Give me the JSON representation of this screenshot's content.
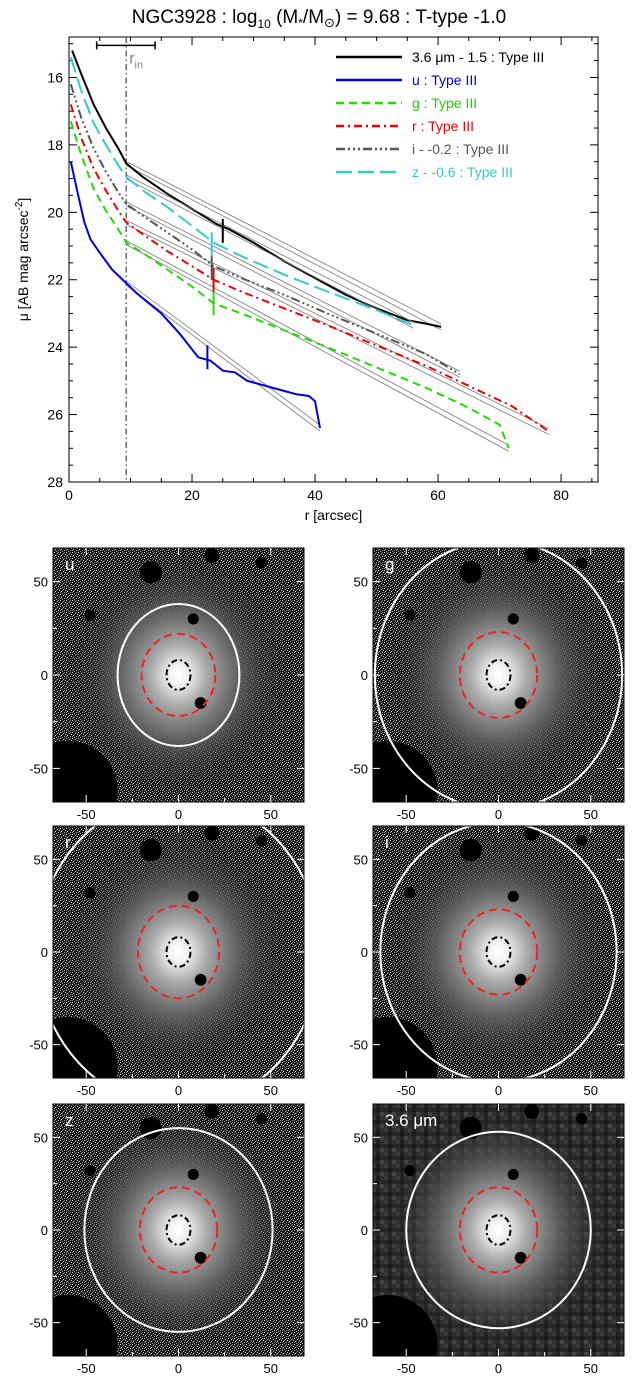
{
  "chart_data": [
    {
      "type": "line",
      "title": "NGC3928 : log10 (M*/M⊙) = 9.68 : T-type -1.0",
      "title_parts": {
        "pre": "NGC3928 : log",
        "sub": "10",
        "mid": " (M",
        "star": "*",
        "slash": "/M",
        "sun": "⊙",
        "post": ") = 9.68 : T-type -1.0"
      },
      "xlabel": "r [arcsec]",
      "ylabel": "μ [AB mag arcsec⁻²]",
      "ylabel_parts": {
        "main": "μ [AB mag arcsec",
        "sup": "-2",
        "close": "]"
      },
      "xlim": [
        0,
        86
      ],
      "ylim": [
        28,
        14.8
      ],
      "y_inverted": true,
      "xticks": [
        0,
        20,
        40,
        60,
        80
      ],
      "yticks": [
        16,
        18,
        20,
        22,
        24,
        26,
        28
      ],
      "r_in": {
        "label": "r",
        "label_sub": "in",
        "value": 9.3,
        "bar": [
          4.5,
          14.0
        ],
        "bar_y": 15.05
      },
      "legend_position": "top-right",
      "series": [
        {
          "name": "3.6 μm - 1.5 : Type III",
          "color": "#000000",
          "dash": "solid",
          "x": [
            0.5,
            2,
            4,
            6,
            8,
            9.3,
            12,
            16,
            20,
            24,
            26,
            30,
            35,
            40,
            45,
            50,
            55,
            58,
            60.5
          ],
          "y": [
            15.2,
            15.9,
            16.8,
            17.5,
            18.1,
            18.55,
            18.95,
            19.45,
            19.9,
            20.35,
            20.5,
            20.9,
            21.45,
            21.95,
            22.45,
            22.85,
            23.2,
            23.3,
            23.4
          ]
        },
        {
          "name": "u : Type III",
          "color": "#0000dd",
          "dash": "solid",
          "x": [
            0.3,
            1.5,
            2.5,
            3.5,
            5,
            7,
            9.3,
            11,
            13,
            15,
            18,
            21,
            23,
            25,
            27,
            29,
            31,
            33,
            35,
            37,
            39,
            40,
            40.8
          ],
          "y": [
            18.5,
            19.5,
            20.3,
            20.8,
            21.2,
            21.7,
            22.1,
            22.4,
            22.7,
            23.0,
            23.6,
            24.3,
            24.4,
            24.7,
            24.75,
            25.0,
            25.1,
            25.2,
            25.3,
            25.4,
            25.45,
            25.6,
            26.4
          ]
        },
        {
          "name": "g : Type III",
          "color": "#22dd00",
          "dash": "dash",
          "x": [
            0.3,
            2,
            4,
            6,
            8,
            9.3,
            12,
            16,
            20,
            23.5,
            28,
            35,
            42,
            50,
            58,
            65,
            70,
            71.5
          ],
          "y": [
            17.3,
            18.3,
            19.3,
            19.95,
            20.5,
            20.9,
            21.2,
            21.7,
            22.2,
            22.7,
            23.0,
            23.5,
            24.0,
            24.6,
            25.2,
            25.8,
            26.3,
            27.0
          ]
        },
        {
          "name": "r : Type III",
          "color": "#ee0000",
          "dash": "dashdot",
          "x": [
            0.3,
            2,
            4,
            6,
            8,
            9.3,
            12,
            16,
            20,
            23.5,
            28,
            35,
            42,
            50,
            58,
            65,
            72,
            78
          ],
          "y": [
            16.8,
            17.8,
            18.7,
            19.35,
            19.95,
            20.3,
            20.65,
            21.15,
            21.6,
            22.0,
            22.35,
            22.85,
            23.35,
            23.95,
            24.55,
            25.15,
            25.75,
            26.5
          ]
        },
        {
          "name": "i - -0.2 : Type III",
          "color": "#555555",
          "dash": "dashdotdotdot",
          "x": [
            0.3,
            2,
            4,
            6,
            8,
            9.3,
            12,
            16,
            20,
            23.5,
            28,
            35,
            42,
            50,
            58,
            63.5
          ],
          "y": [
            16.2,
            17.2,
            18.1,
            18.8,
            19.4,
            19.75,
            20.1,
            20.6,
            21.1,
            21.6,
            21.95,
            22.45,
            23.0,
            23.6,
            24.2,
            24.8
          ]
        },
        {
          "name": "z - -0.6 : Type III",
          "color": "#33cccc",
          "dash": "longdash",
          "x": [
            0.3,
            2,
            4,
            6,
            8,
            9.3,
            12,
            16,
            20,
            23.5,
            28,
            35,
            42,
            50,
            56
          ],
          "y": [
            15.4,
            16.4,
            17.35,
            18.0,
            18.6,
            18.95,
            19.35,
            19.85,
            20.4,
            20.9,
            21.3,
            21.85,
            22.35,
            22.9,
            23.35
          ]
        }
      ],
      "break_marks": [
        {
          "series": 0,
          "x": 25.0,
          "y": 20.55
        },
        {
          "series": 1,
          "x": 22.5,
          "y": 24.3
        },
        {
          "series": 2,
          "x": 23.5,
          "y": 22.7
        },
        {
          "series": 3,
          "x": 23.5,
          "y": 22.0
        },
        {
          "series": 4,
          "x": 23.2,
          "y": 21.65
        },
        {
          "series": 5,
          "x": 23.2,
          "y": 20.95
        }
      ]
    },
    {
      "type": "image",
      "panels": [
        {
          "label": "u",
          "label_parts": {
            "main": "u",
            "unit": ""
          },
          "outer_ellipse": {
            "a": 33,
            "b": 38
          },
          "mid_ellipse": {
            "a": 20,
            "b": 22
          },
          "inner_ellipse": {
            "a": 6.5,
            "b": 8
          },
          "noise": "fine"
        },
        {
          "label": "g",
          "label_parts": {
            "main": "g",
            "unit": ""
          },
          "outer_ellipse": {
            "a": 67,
            "b": 72
          },
          "mid_ellipse": {
            "a": 21,
            "b": 23
          },
          "inner_ellipse": {
            "a": 6.5,
            "b": 8
          },
          "noise": "fine"
        },
        {
          "label": "r",
          "label_parts": {
            "main": "r",
            "unit": ""
          },
          "outer_ellipse": {
            "a": 77,
            "b": 84
          },
          "mid_ellipse": {
            "a": 22,
            "b": 25
          },
          "inner_ellipse": {
            "a": 6.5,
            "b": 8
          },
          "noise": "fine"
        },
        {
          "label": "i",
          "label_parts": {
            "main": "i",
            "unit": ""
          },
          "outer_ellipse": {
            "a": 64,
            "b": 70
          },
          "mid_ellipse": {
            "a": 21,
            "b": 23
          },
          "inner_ellipse": {
            "a": 6.5,
            "b": 8
          },
          "noise": "fine"
        },
        {
          "label": "z",
          "label_parts": {
            "main": "z",
            "unit": ""
          },
          "outer_ellipse": {
            "a": 51,
            "b": 55
          },
          "mid_ellipse": {
            "a": 21,
            "b": 23
          },
          "inner_ellipse": {
            "a": 6.5,
            "b": 8
          },
          "noise": "fine"
        },
        {
          "label": "3.6 μm",
          "label_parts": {
            "main": "3.6 ",
            "unit": "μm"
          },
          "outer_ellipse": {
            "a": 50,
            "b": 53
          },
          "mid_ellipse": {
            "a": 21,
            "b": 23
          },
          "inner_ellipse": {
            "a": 6.5,
            "b": 8
          },
          "noise": "coarse"
        }
      ],
      "xlim": [
        -68,
        68
      ],
      "ylim": [
        -68,
        68
      ],
      "xticks": [
        -50,
        0,
        50
      ],
      "yticks": [
        -50,
        0,
        50
      ],
      "masks": [
        {
          "x": -60,
          "y": -62,
          "r": 27
        },
        {
          "x": -15,
          "y": 55,
          "r": 6
        },
        {
          "x": 18,
          "y": 64,
          "r": 4
        },
        {
          "x": 45,
          "y": 60,
          "r": 3
        },
        {
          "x": -48,
          "y": 32,
          "r": 3
        },
        {
          "x": 8,
          "y": 30,
          "r": 3
        },
        {
          "x": 12,
          "y": -15,
          "r": 3.2
        }
      ],
      "colors": {
        "outer": "#ffffff",
        "mid": "#ee2222",
        "inner": "#000000",
        "bg": "#000000"
      }
    }
  ]
}
